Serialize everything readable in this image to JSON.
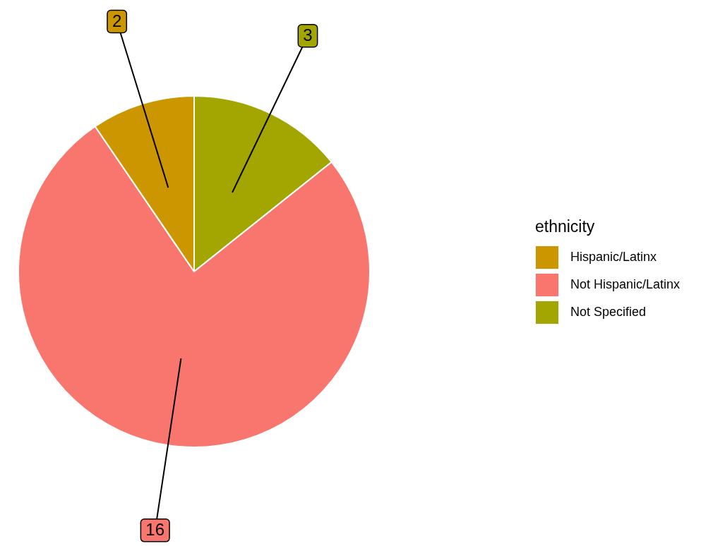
{
  "chart_data": {
    "type": "pie",
    "legend_title": "ethnicity",
    "legend": "right",
    "data_labels": true,
    "categories": [
      "Hispanic/Latinx",
      "Not Hispanic/Latinx",
      "Not Specified"
    ],
    "values": [
      2,
      16,
      3
    ],
    "colors": [
      "#cc9600",
      "#f8766d",
      "#a3a500"
    ]
  }
}
